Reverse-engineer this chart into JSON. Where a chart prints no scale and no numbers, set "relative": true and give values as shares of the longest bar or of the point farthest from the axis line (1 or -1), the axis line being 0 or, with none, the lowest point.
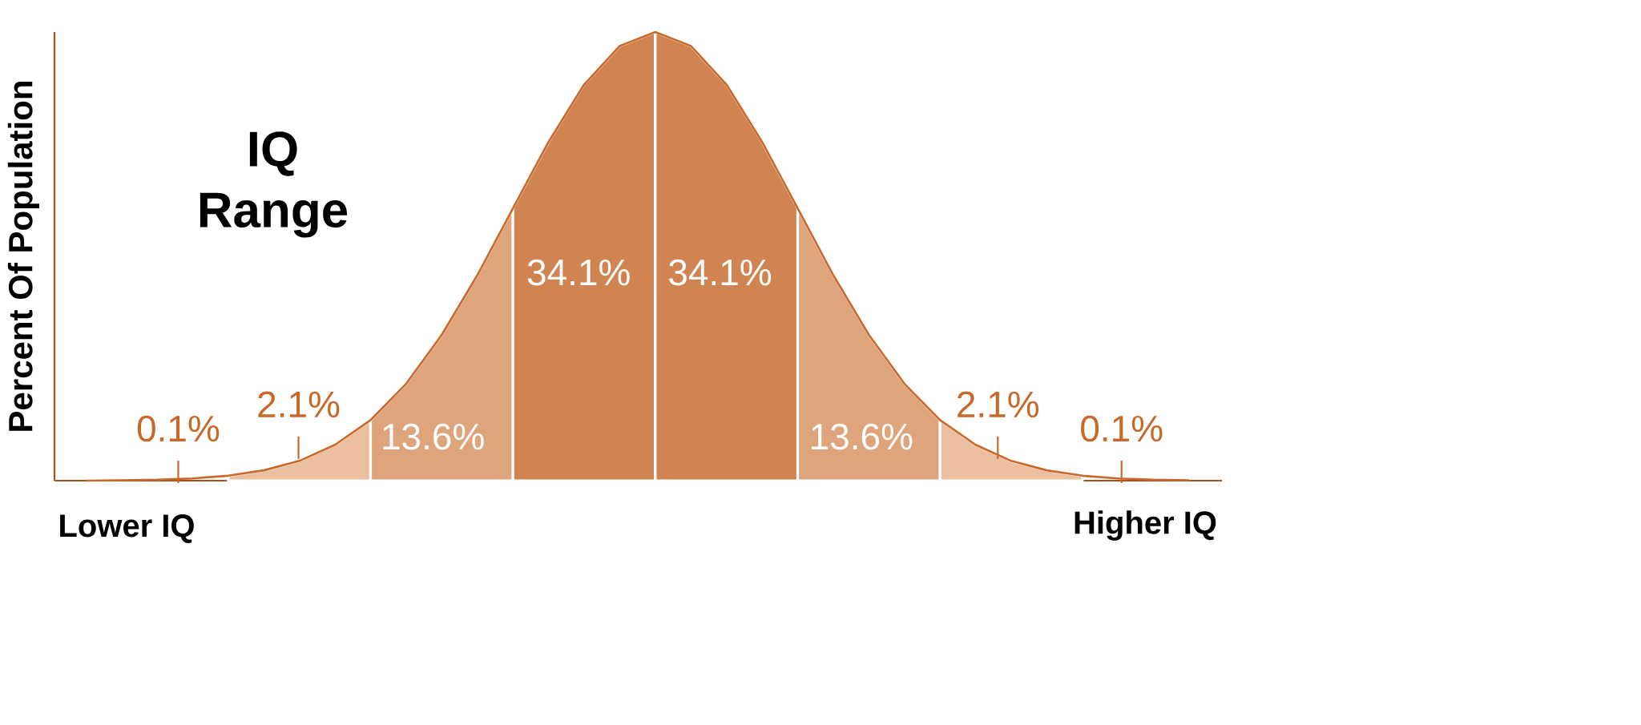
{
  "chart_data": {
    "type": "area",
    "relative": true,
    "title": "IQ Range",
    "ylabel": "Percent Of Population",
    "categories": [
      null,
      null,
      null,
      null,
      null,
      null,
      null,
      null,
      null,
      null,
      null,
      null,
      null,
      null,
      null,
      null,
      null,
      null,
      null,
      null,
      null,
      null,
      null,
      null,
      null,
      null,
      null,
      null,
      null,
      null,
      null,
      null
    ],
    "series": [
      {
        "color": "#ebbf9f",
        "values": [
          null,
          null,
          null,
          null,
          0.011,
          0.023,
          0.044,
          0.08,
          0.135,
          null,
          null,
          null,
          null,
          null,
          null,
          null,
          null,
          null,
          null,
          null,
          null,
          null,
          null,
          null,
          null,
          null,
          null,
          null,
          null,
          null,
          null,
          null
        ]
      },
      {
        "color": "#dea47c",
        "values": [
          null,
          null,
          null,
          null,
          null,
          null,
          null,
          null,
          0.135,
          0.216,
          0.325,
          0.458,
          0.607,
          null,
          null,
          null,
          null,
          null,
          null,
          null,
          null,
          null,
          null,
          null,
          null,
          null,
          null,
          null,
          null,
          null,
          null,
          null
        ]
      },
      {
        "color": "#d08451",
        "values": [
          null,
          null,
          null,
          null,
          null,
          null,
          null,
          null,
          null,
          null,
          null,
          null,
          0.607,
          0.755,
          0.883,
          0.969,
          1,
          null,
          null,
          null,
          null,
          null,
          null,
          null,
          null,
          null,
          null,
          null,
          null,
          null,
          null,
          null
        ]
      },
      {
        "color": "#d08451",
        "values": [
          null,
          null,
          null,
          null,
          null,
          null,
          null,
          null,
          null,
          null,
          null,
          null,
          null,
          null,
          null,
          null,
          1,
          0.969,
          0.883,
          0.755,
          0.607,
          null,
          null,
          null,
          null,
          null,
          null,
          null,
          null,
          null,
          null,
          null
        ]
      },
      {
        "color": "#dea47c",
        "values": [
          null,
          null,
          null,
          null,
          null,
          null,
          null,
          null,
          null,
          null,
          null,
          null,
          null,
          null,
          null,
          null,
          null,
          null,
          null,
          null,
          0.607,
          0.458,
          0.325,
          0.216,
          0.135,
          null,
          null,
          null,
          null,
          null,
          null,
          null
        ]
      },
      {
        "color": "#ebbf9f",
        "values": [
          null,
          null,
          null,
          null,
          null,
          null,
          null,
          null,
          null,
          null,
          null,
          null,
          null,
          null,
          null,
          null,
          null,
          null,
          null,
          null,
          null,
          null,
          null,
          null,
          0.135,
          0.08,
          0.044,
          0.023,
          0.011,
          null,
          null,
          null
        ]
      },
      {
        "type": "line",
        "color": "#c8692a",
        "values": [
          0,
          0.001,
          0.002,
          0.005,
          0.011,
          0.023,
          0.044,
          0.08,
          0.135,
          0.216,
          0.325,
          0.458,
          0.607,
          0.755,
          0.883,
          0.969,
          1,
          0.969,
          0.883,
          0.755,
          0.607,
          0.458,
          0.325,
          0.216,
          0.135,
          0.08,
          0.044,
          0.023,
          0.011,
          0.005,
          0.002,
          0.001
        ]
      }
    ],
    "annotations": [
      "0.1%",
      "2.1%",
      "13.6%",
      "34.1%",
      "34.1%",
      "13.6%",
      "2.1%",
      "0.1%",
      "Lower IQ",
      "Higher IQ"
    ]
  }
}
